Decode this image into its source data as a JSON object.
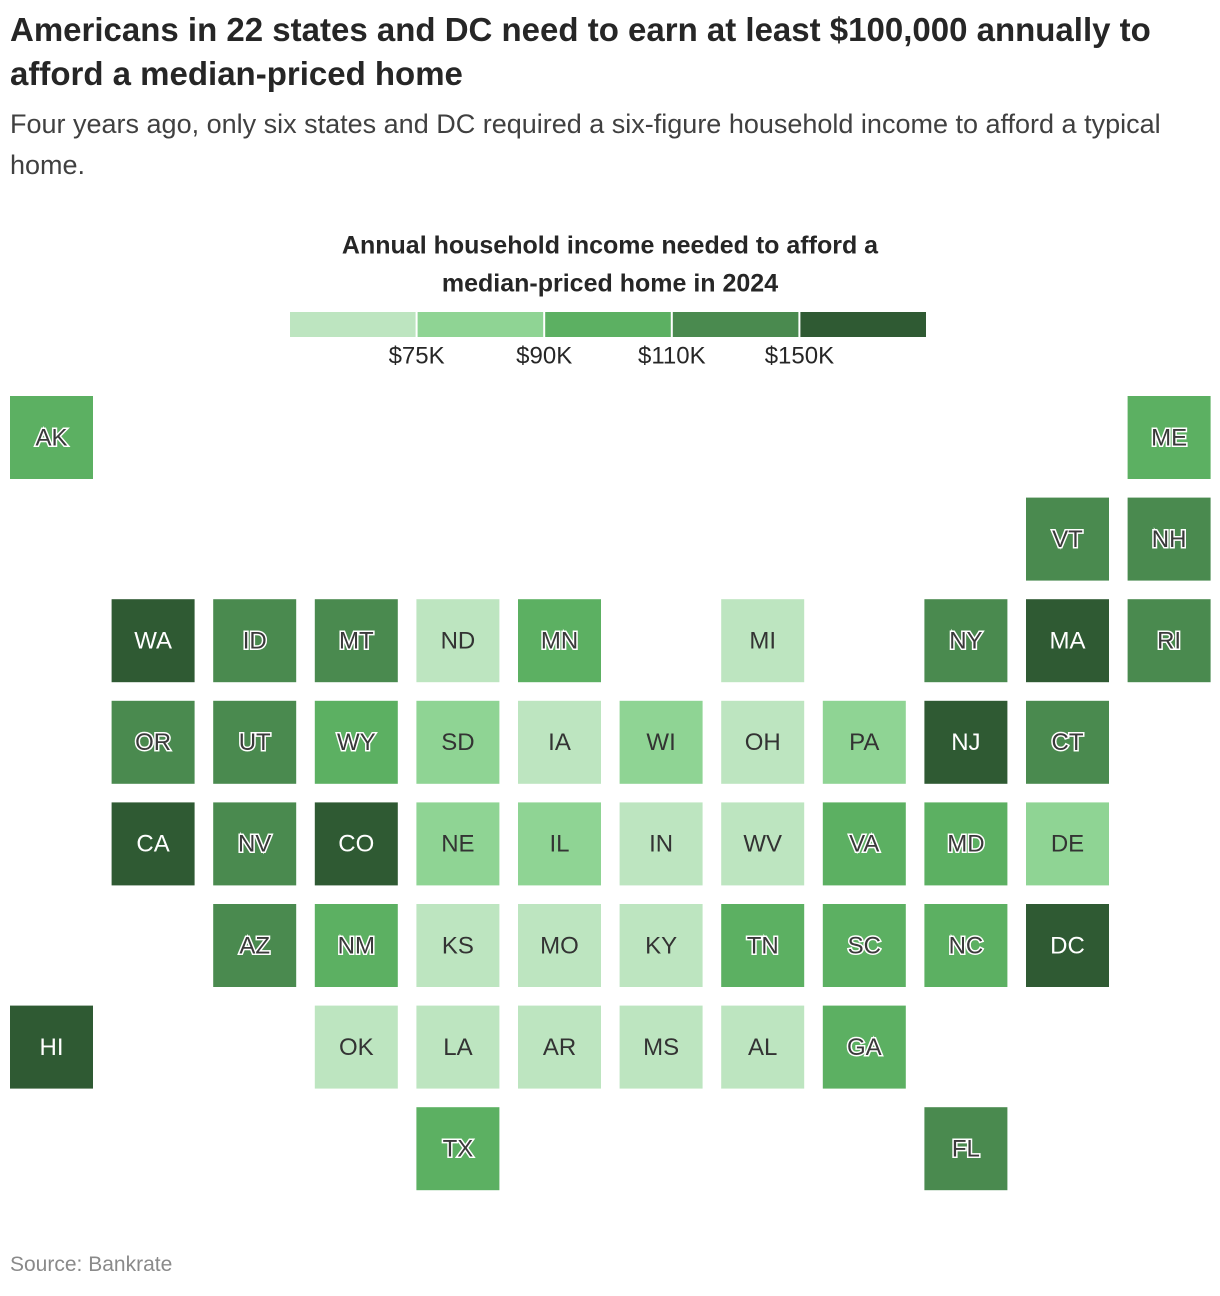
{
  "chart_data": {
    "type": "tilemap",
    "title": "Americans in 22 states and DC need to earn at least $100,000 annually to afford a median-priced home",
    "subtitle": "Four years ago, only six states and DC required a six-figure household income to afford a typical home.",
    "legend_title": [
      "Annual household income needed to afford a",
      "median-priced home in 2024"
    ],
    "legend_colors": [
      "#bde5c0",
      "#8fd494",
      "#5cb062",
      "#4a8a4f",
      "#2f5a33"
    ],
    "legend_ticks": [
      {
        "value": 75000,
        "label": "$75K"
      },
      {
        "value": 90000,
        "label": "$90K"
      },
      {
        "value": 110000,
        "label": "$110K"
      },
      {
        "value": 150000,
        "label": "$150K"
      }
    ],
    "tiles": [
      {
        "state": "AK",
        "color": "#5cb062"
      },
      {
        "state": "ME",
        "color": "#5cb062"
      },
      {
        "state": "VT",
        "color": "#4a8a4f"
      },
      {
        "state": "NH",
        "color": "#4a8a4f"
      },
      {
        "state": "WA",
        "color": "#2f5a33"
      },
      {
        "state": "ID",
        "color": "#4a8a4f"
      },
      {
        "state": "MT",
        "color": "#4a8a4f"
      },
      {
        "state": "ND",
        "color": "#bde5c0"
      },
      {
        "state": "MN",
        "color": "#5cb062"
      },
      {
        "state": "MI",
        "color": "#bde5c0"
      },
      {
        "state": "NY",
        "color": "#4a8a4f"
      },
      {
        "state": "MA",
        "color": "#2f5a33"
      },
      {
        "state": "RI",
        "color": "#4a8a4f"
      },
      {
        "state": "OR",
        "color": "#4a8a4f"
      },
      {
        "state": "UT",
        "color": "#4a8a4f"
      },
      {
        "state": "WY",
        "color": "#5cb062"
      },
      {
        "state": "SD",
        "color": "#8fd494"
      },
      {
        "state": "IA",
        "color": "#bde5c0"
      },
      {
        "state": "WI",
        "color": "#8fd494"
      },
      {
        "state": "OH",
        "color": "#bde5c0"
      },
      {
        "state": "PA",
        "color": "#8fd494"
      },
      {
        "state": "NJ",
        "color": "#2f5a33"
      },
      {
        "state": "CT",
        "color": "#4a8a4f"
      },
      {
        "state": "CA",
        "color": "#2f5a33"
      },
      {
        "state": "NV",
        "color": "#4a8a4f"
      },
      {
        "state": "CO",
        "color": "#2f5a33"
      },
      {
        "state": "NE",
        "color": "#8fd494"
      },
      {
        "state": "IL",
        "color": "#8fd494"
      },
      {
        "state": "IN",
        "color": "#bde5c0"
      },
      {
        "state": "WV",
        "color": "#bde5c0"
      },
      {
        "state": "VA",
        "color": "#5cb062"
      },
      {
        "state": "MD",
        "color": "#5cb062"
      },
      {
        "state": "DE",
        "color": "#8fd494"
      },
      {
        "state": "AZ",
        "color": "#4a8a4f"
      },
      {
        "state": "NM",
        "color": "#5cb062"
      },
      {
        "state": "KS",
        "color": "#bde5c0"
      },
      {
        "state": "MO",
        "color": "#bde5c0"
      },
      {
        "state": "KY",
        "color": "#bde5c0"
      },
      {
        "state": "TN",
        "color": "#5cb062"
      },
      {
        "state": "SC",
        "color": "#5cb062"
      },
      {
        "state": "NC",
        "color": "#5cb062"
      },
      {
        "state": "DC",
        "color": "#2f5a33"
      },
      {
        "state": "HI",
        "color": "#2f5a33"
      },
      {
        "state": "OK",
        "color": "#bde5c0"
      },
      {
        "state": "LA",
        "color": "#bde5c0"
      },
      {
        "state": "AR",
        "color": "#bde5c0"
      },
      {
        "state": "MS",
        "color": "#bde5c0"
      },
      {
        "state": "AL",
        "color": "#bde5c0"
      },
      {
        "state": "GA",
        "color": "#5cb062"
      },
      {
        "state": "TX",
        "color": "#5cb062"
      },
      {
        "state": "FL",
        "color": "#4a8a4f"
      }
    ],
    "source": "Source: Bankrate"
  }
}
